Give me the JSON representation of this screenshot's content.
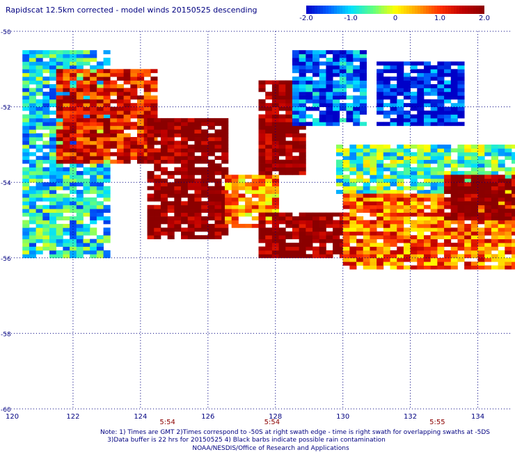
{
  "title": "Rapidscat 12.5km corrected - model winds 20150525 descending",
  "colorbar": {
    "labels": [
      "-2.0",
      "-1.0",
      "0",
      "1.0",
      "2.0"
    ],
    "values": [
      -2.0,
      -1.0,
      0,
      1.0,
      2.0
    ],
    "stops": [
      "#0000c8",
      "#0060ff",
      "#00e0ff",
      "#60ff80",
      "#ffff00",
      "#ffa000",
      "#ff3000",
      "#c00000",
      "#8b0000"
    ]
  },
  "time_labels": [
    {
      "text": "5:54",
      "lon": 124.8
    },
    {
      "text": "5:54",
      "lon": 127.9
    },
    {
      "text": "5:55",
      "lon": 132.8
    }
  ],
  "notes": [
    "Note: 1) Times are GMT 2)Times correspond to -50S at right swath edge - time is right swath for overlapping swaths at -5DS",
    "3)Data buffer is 22 hrs for 20150525 4) Black barbs indicate possible rain contamination",
    "NOAA/NESDIS/Office of Research and Applications"
  ],
  "chart_data": {
    "type": "heatmap",
    "title": "Rapidscat 12.5km corrected - model winds 20150525 descending",
    "xlabel": "",
    "ylabel": "",
    "x_ticks": [
      120,
      122,
      124,
      126,
      128,
      130,
      132,
      134
    ],
    "y_ticks": [
      -50,
      -52,
      -54,
      -56,
      -58,
      -60
    ],
    "xlim": [
      120,
      135
    ],
    "ylim": [
      -60,
      -50
    ],
    "value_range": [
      -2.0,
      2.0
    ],
    "grid": true,
    "regions": [
      {
        "lon_range": [
          120.5,
          123.0
        ],
        "lat_range": [
          -56.0,
          -50.5
        ],
        "value": -0.9
      },
      {
        "lon_range": [
          121.5,
          124.5
        ],
        "lat_range": [
          -53.5,
          -51.0
        ],
        "value": 1.3
      },
      {
        "lon_range": [
          124.2,
          126.5
        ],
        "lat_range": [
          -55.5,
          -52.3
        ],
        "value": 2.0
      },
      {
        "lon_range": [
          126.5,
          128.0
        ],
        "lat_range": [
          -55.2,
          -53.8
        ],
        "value": 0.6
      },
      {
        "lon_range": [
          127.5,
          128.7
        ],
        "lat_range": [
          -53.8,
          -51.3
        ],
        "value": 2.0
      },
      {
        "lon_range": [
          127.5,
          130.0
        ],
        "lat_range": [
          -56.0,
          -54.8
        ],
        "value": 2.0
      },
      {
        "lon_range": [
          128.5,
          130.5
        ],
        "lat_range": [
          -52.5,
          -50.5
        ],
        "value": -1.5
      },
      {
        "lon_range": [
          129.8,
          135.0
        ],
        "lat_range": [
          -54.3,
          -53.0
        ],
        "value": -0.6
      },
      {
        "lon_range": [
          130.0,
          135.0
        ],
        "lat_range": [
          -56.3,
          -54.3
        ],
        "value": 0.8
      },
      {
        "lon_range": [
          133.0,
          135.0
        ],
        "lat_range": [
          -55.0,
          -53.8
        ],
        "value": 2.0
      },
      {
        "lon_range": [
          131.0,
          133.5
        ],
        "lat_range": [
          -52.5,
          -50.8
        ],
        "value": -1.8
      }
    ]
  }
}
